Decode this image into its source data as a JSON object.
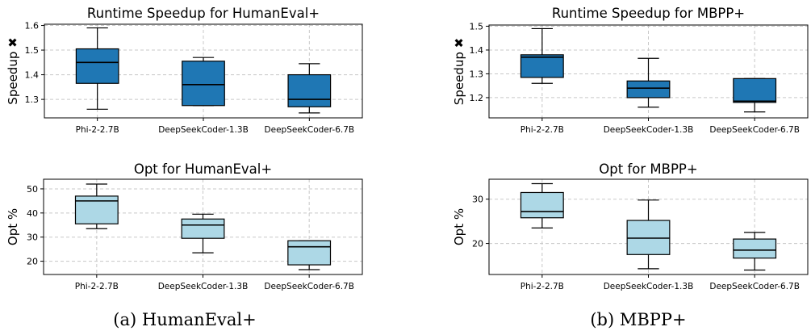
{
  "captions": [
    "(a) HumanEval+",
    "(b) MBPP+"
  ],
  "colors": {
    "speedup_box": "#1f77b4",
    "opt_box": "#add8e6",
    "median": "#000000",
    "grid": "#c8c8c8"
  },
  "chart_data": [
    {
      "type": "box",
      "title": "Runtime Speedup for HumanEval+",
      "xlabel": "",
      "ylabel": "Speedup ✖",
      "categories": [
        "Phi-2-2.7B",
        "DeepSeekCoder-1.3B",
        "DeepSeekCoder-6.7B"
      ],
      "ylim": [
        1.225,
        1.605
      ],
      "yticks": [
        1.3,
        1.4,
        1.5,
        1.6
      ],
      "tick_labels": [
        "1.3",
        "1.4",
        "1.5",
        "1.6"
      ],
      "grid": true,
      "box_color": "#1f77b4",
      "series": [
        {
          "whislo": 1.26,
          "q1": 1.365,
          "med": 1.45,
          "q3": 1.505,
          "whishi": 1.59
        },
        {
          "whislo": 1.275,
          "q1": 1.275,
          "med": 1.36,
          "q3": 1.455,
          "whishi": 1.47
        },
        {
          "whislo": 1.245,
          "q1": 1.27,
          "med": 1.3,
          "q3": 1.4,
          "whishi": 1.445
        }
      ]
    },
    {
      "type": "box",
      "title": "Runtime Speedup for MBPP+",
      "xlabel": "",
      "ylabel": "Speedup ✖",
      "categories": [
        "Phi-2-2.7B",
        "DeepSeekCoder-1.3B",
        "DeepSeekCoder-6.7B"
      ],
      "ylim": [
        1.115,
        1.505
      ],
      "yticks": [
        1.2,
        1.3,
        1.4,
        1.5
      ],
      "tick_labels": [
        "1.2",
        "1.3",
        "1.4",
        "1.5"
      ],
      "grid": true,
      "box_color": "#1f77b4",
      "series": [
        {
          "whislo": 1.26,
          "q1": 1.285,
          "med": 1.37,
          "q3": 1.38,
          "whishi": 1.49
        },
        {
          "whislo": 1.16,
          "q1": 1.2,
          "med": 1.24,
          "q3": 1.27,
          "whishi": 1.365
        },
        {
          "whislo": 1.14,
          "q1": 1.18,
          "med": 1.185,
          "q3": 1.28,
          "whishi": 1.28
        }
      ]
    },
    {
      "type": "box",
      "title": "Opt for HumanEval+",
      "xlabel": "",
      "ylabel": "Opt %",
      "categories": [
        "Phi-2-2.7B",
        "DeepSeekCoder-1.3B",
        "DeepSeekCoder-6.7B"
      ],
      "ylim": [
        14.5,
        54
      ],
      "yticks": [
        20,
        30,
        40,
        50
      ],
      "tick_labels": [
        "20",
        "30",
        "40",
        "50"
      ],
      "grid": true,
      "box_color": "#add8e6",
      "series": [
        {
          "whislo": 33.5,
          "q1": 35.5,
          "med": 45,
          "q3": 47,
          "whishi": 52
        },
        {
          "whislo": 23.5,
          "q1": 29.5,
          "med": 35,
          "q3": 37.5,
          "whishi": 39.5
        },
        {
          "whislo": 16.5,
          "q1": 18.5,
          "med": 26,
          "q3": 28.5,
          "whishi": 28.5
        }
      ]
    },
    {
      "type": "box",
      "title": "Opt for MBPP+",
      "xlabel": "",
      "ylabel": "Opt %",
      "categories": [
        "Phi-2-2.7B",
        "DeepSeekCoder-1.3B",
        "DeepSeekCoder-6.7B"
      ],
      "ylim": [
        13,
        34.5
      ],
      "yticks": [
        20,
        30
      ],
      "tick_labels": [
        "20",
        "30"
      ],
      "grid": true,
      "box_color": "#add8e6",
      "series": [
        {
          "whislo": 23.5,
          "q1": 25.8,
          "med": 27.2,
          "q3": 31.5,
          "whishi": 33.5
        },
        {
          "whislo": 14.3,
          "q1": 17.5,
          "med": 21.2,
          "q3": 25.2,
          "whishi": 29.8
        },
        {
          "whislo": 14,
          "q1": 16.7,
          "med": 18.5,
          "q3": 21,
          "whishi": 22.5
        }
      ]
    }
  ]
}
